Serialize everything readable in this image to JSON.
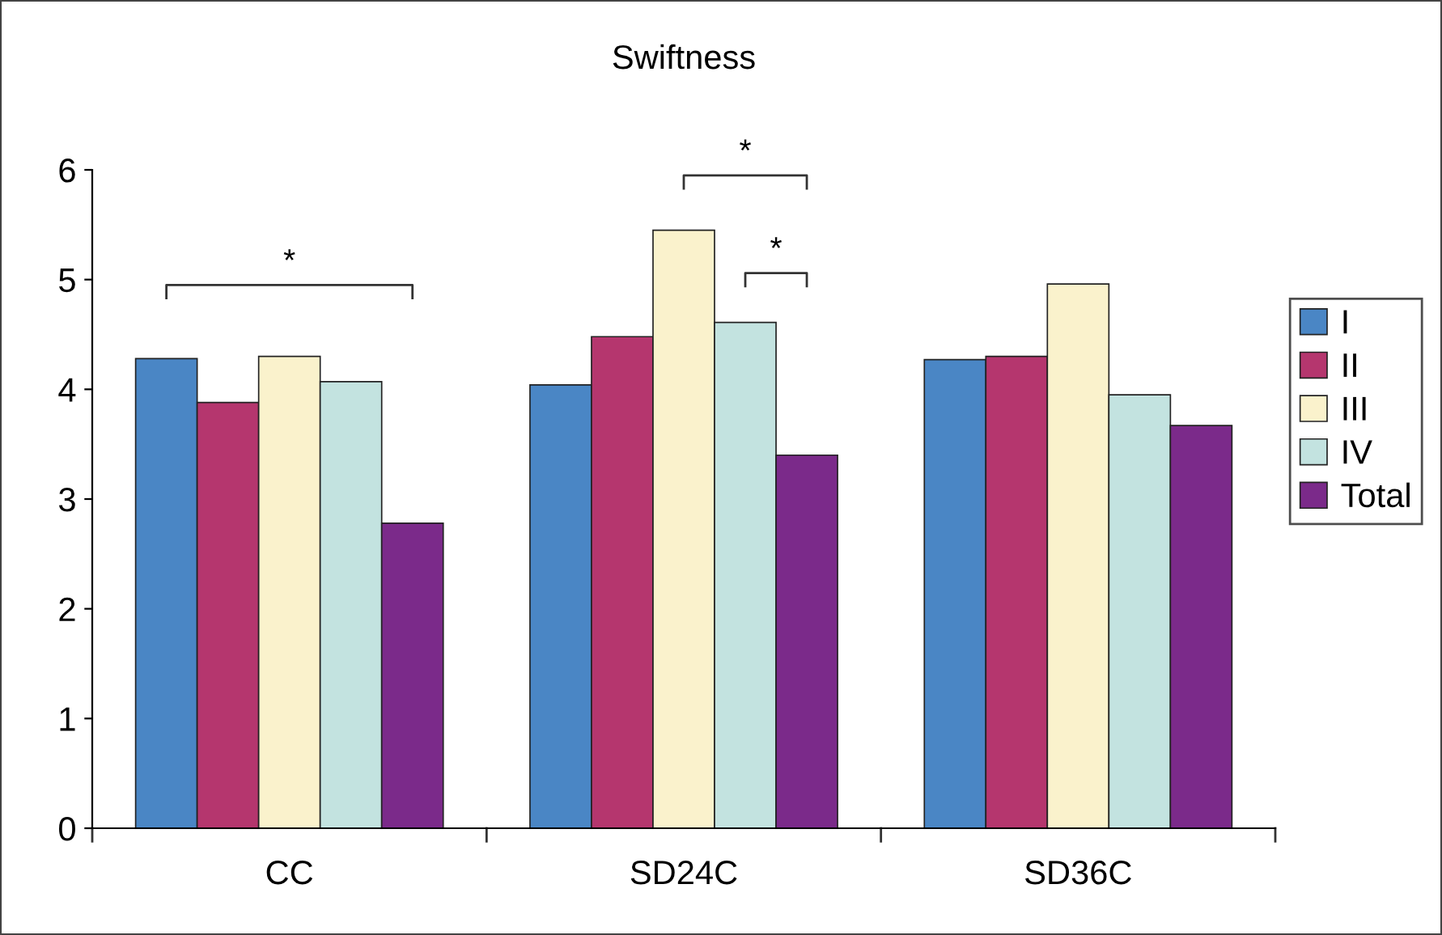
{
  "chart_data": {
    "type": "bar",
    "title": "Swiftness",
    "categories": [
      "CC",
      "SD24C",
      "SD36C"
    ],
    "series": [
      {
        "name": "I",
        "color": "#4a86c5",
        "values": [
          4.28,
          4.04,
          4.27
        ]
      },
      {
        "name": "II",
        "color": "#b5366e",
        "values": [
          3.88,
          4.48,
          4.3
        ]
      },
      {
        "name": "III",
        "color": "#faf2cc",
        "values": [
          4.3,
          5.45,
          4.96
        ]
      },
      {
        "name": "IV",
        "color": "#c3e3e0",
        "values": [
          4.07,
          4.61,
          3.95
        ]
      },
      {
        "name": "Total",
        "color": "#7b2a8a",
        "values": [
          2.78,
          3.4,
          3.67
        ]
      }
    ],
    "ylim": [
      0,
      6
    ],
    "yticks": [
      0,
      1,
      2,
      3,
      4,
      5,
      6
    ],
    "grid": false,
    "legend": "right",
    "annotations": [
      "*",
      "*",
      "*"
    ]
  }
}
